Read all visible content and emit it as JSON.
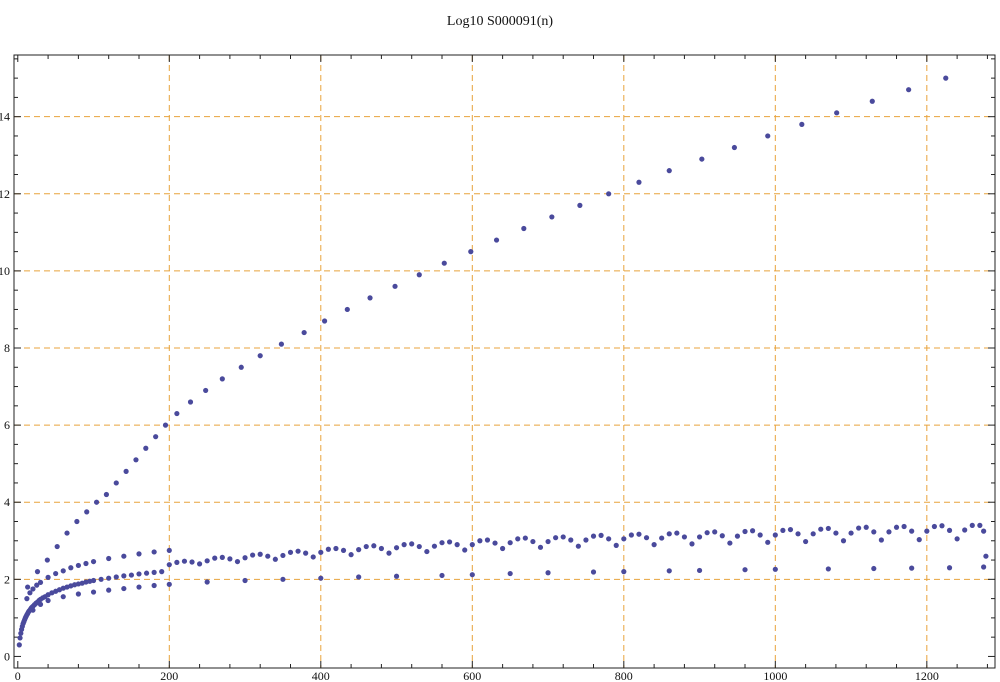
{
  "chart_data": {
    "type": "scatter",
    "title": "Log10 S000091(n)",
    "xlabel": "",
    "ylabel": "",
    "xlim": [
      -5,
      1290
    ],
    "ylim": [
      -0.3,
      15.6
    ],
    "xticks": [
      0,
      200,
      400,
      600,
      800,
      1000,
      1200
    ],
    "xtick_labels": [
      "0",
      "200",
      "400",
      "600",
      "800",
      "1000",
      "1200"
    ],
    "yticks": [
      0,
      2,
      4,
      6,
      8,
      10,
      12,
      14
    ],
    "ytick_labels": [
      "0",
      "2",
      "4",
      "6",
      "8",
      "10",
      "12",
      "14"
    ],
    "grid": true,
    "grid_style": "dashed",
    "colors": {
      "points": "#4a4a9c",
      "grid": "#e8a33c",
      "axes": "#222222"
    },
    "series": [
      {
        "points": [
          [
            2,
            0.3
          ],
          [
            3,
            0.48
          ],
          [
            4,
            0.6
          ],
          [
            5,
            0.7
          ],
          [
            6,
            0.78
          ],
          [
            7,
            0.85
          ],
          [
            8,
            0.9
          ],
          [
            9,
            0.95
          ],
          [
            10,
            1.0
          ],
          [
            11,
            1.04
          ],
          [
            12,
            1.08
          ],
          [
            13,
            1.11
          ],
          [
            14,
            1.15
          ],
          [
            15,
            1.18
          ],
          [
            16,
            1.2
          ],
          [
            17,
            1.23
          ],
          [
            18,
            1.26
          ],
          [
            19,
            1.28
          ],
          [
            20,
            1.3
          ],
          [
            22,
            1.34
          ],
          [
            24,
            1.38
          ],
          [
            26,
            1.41
          ],
          [
            28,
            1.45
          ],
          [
            30,
            1.48
          ],
          [
            33,
            1.52
          ],
          [
            36,
            1.55
          ],
          [
            40,
            1.6
          ],
          [
            45,
            1.65
          ],
          [
            50,
            1.69
          ],
          [
            55,
            1.73
          ],
          [
            60,
            1.77
          ],
          [
            65,
            1.8
          ],
          [
            70,
            1.83
          ],
          [
            75,
            1.86
          ],
          [
            80,
            1.88
          ],
          [
            85,
            1.9
          ],
          [
            90,
            1.93
          ],
          [
            95,
            1.95
          ],
          [
            100,
            1.97
          ],
          [
            110,
            2.0
          ],
          [
            120,
            2.03
          ],
          [
            130,
            2.06
          ],
          [
            140,
            2.09
          ],
          [
            150,
            2.11
          ],
          [
            160,
            2.14
          ],
          [
            170,
            2.16
          ],
          [
            180,
            2.18
          ],
          [
            190,
            2.2
          ],
          [
            12,
            1.5
          ],
          [
            16,
            1.65
          ],
          [
            20,
            1.75
          ],
          [
            25,
            1.85
          ],
          [
            30,
            1.92
          ],
          [
            40,
            2.05
          ],
          [
            50,
            2.15
          ],
          [
            60,
            2.22
          ],
          [
            70,
            2.3
          ],
          [
            80,
            2.36
          ],
          [
            90,
            2.41
          ],
          [
            100,
            2.46
          ],
          [
            120,
            2.54
          ],
          [
            140,
            2.6
          ],
          [
            160,
            2.66
          ],
          [
            180,
            2.71
          ],
          [
            200,
            2.75
          ],
          [
            20,
            1.2
          ],
          [
            30,
            1.35
          ],
          [
            40,
            1.45
          ],
          [
            60,
            1.55
          ],
          [
            80,
            1.62
          ],
          [
            100,
            1.67
          ],
          [
            120,
            1.72
          ],
          [
            140,
            1.76
          ],
          [
            160,
            1.8
          ],
          [
            180,
            1.84
          ],
          [
            200,
            1.87
          ],
          [
            250,
            1.93
          ],
          [
            300,
            1.97
          ],
          [
            350,
            2.0
          ],
          [
            400,
            2.03
          ],
          [
            450,
            2.06
          ],
          [
            500,
            2.08
          ],
          [
            560,
            2.1
          ],
          [
            600,
            2.12
          ],
          [
            650,
            2.15
          ],
          [
            700,
            2.17
          ],
          [
            760,
            2.19
          ],
          [
            800,
            2.2
          ],
          [
            860,
            2.22
          ],
          [
            900,
            2.23
          ],
          [
            960,
            2.25
          ],
          [
            1000,
            2.26
          ],
          [
            1070,
            2.27
          ],
          [
            1130,
            2.28
          ],
          [
            1180,
            2.29
          ],
          [
            1230,
            2.3
          ],
          [
            1275,
            2.32
          ],
          [
            200,
            2.38
          ],
          [
            210,
            2.44
          ],
          [
            220,
            2.47
          ],
          [
            230,
            2.45
          ],
          [
            240,
            2.4
          ],
          [
            250,
            2.48
          ],
          [
            260,
            2.55
          ],
          [
            270,
            2.57
          ],
          [
            280,
            2.53
          ],
          [
            290,
            2.46
          ],
          [
            300,
            2.56
          ],
          [
            310,
            2.63
          ],
          [
            320,
            2.65
          ],
          [
            330,
            2.6
          ],
          [
            340,
            2.52
          ],
          [
            350,
            2.62
          ],
          [
            360,
            2.7
          ],
          [
            370,
            2.73
          ],
          [
            380,
            2.68
          ],
          [
            390,
            2.58
          ],
          [
            400,
            2.7
          ],
          [
            410,
            2.78
          ],
          [
            420,
            2.8
          ],
          [
            430,
            2.75
          ],
          [
            440,
            2.64
          ],
          [
            450,
            2.77
          ],
          [
            460,
            2.85
          ],
          [
            470,
            2.87
          ],
          [
            480,
            2.8
          ],
          [
            490,
            2.68
          ],
          [
            500,
            2.82
          ],
          [
            510,
            2.9
          ],
          [
            520,
            2.92
          ],
          [
            530,
            2.85
          ],
          [
            540,
            2.72
          ],
          [
            550,
            2.86
          ],
          [
            560,
            2.95
          ],
          [
            570,
            2.97
          ],
          [
            580,
            2.9
          ],
          [
            590,
            2.76
          ],
          [
            600,
            2.9
          ],
          [
            610,
            3.0
          ],
          [
            620,
            3.02
          ],
          [
            630,
            2.94
          ],
          [
            640,
            2.8
          ],
          [
            650,
            2.95
          ],
          [
            660,
            3.05
          ],
          [
            670,
            3.07
          ],
          [
            680,
            2.98
          ],
          [
            690,
            2.83
          ],
          [
            700,
            2.98
          ],
          [
            710,
            3.08
          ],
          [
            720,
            3.1
          ],
          [
            730,
            3.02
          ],
          [
            740,
            2.86
          ],
          [
            750,
            3.02
          ],
          [
            760,
            3.12
          ],
          [
            770,
            3.14
          ],
          [
            780,
            3.05
          ],
          [
            790,
            2.88
          ],
          [
            800,
            3.05
          ],
          [
            810,
            3.15
          ],
          [
            820,
            3.17
          ],
          [
            830,
            3.08
          ],
          [
            840,
            2.9
          ],
          [
            850,
            3.07
          ],
          [
            860,
            3.18
          ],
          [
            870,
            3.2
          ],
          [
            880,
            3.1
          ],
          [
            890,
            2.92
          ],
          [
            900,
            3.1
          ],
          [
            910,
            3.21
          ],
          [
            920,
            3.23
          ],
          [
            930,
            3.13
          ],
          [
            940,
            2.94
          ],
          [
            950,
            3.12
          ],
          [
            960,
            3.24
          ],
          [
            970,
            3.26
          ],
          [
            980,
            3.15
          ],
          [
            990,
            2.96
          ],
          [
            1000,
            3.15
          ],
          [
            1010,
            3.27
          ],
          [
            1020,
            3.29
          ],
          [
            1030,
            3.18
          ],
          [
            1040,
            2.98
          ],
          [
            1050,
            3.18
          ],
          [
            1060,
            3.3
          ],
          [
            1070,
            3.32
          ],
          [
            1080,
            3.2
          ],
          [
            1090,
            3.0
          ],
          [
            1100,
            3.2
          ],
          [
            1110,
            3.33
          ],
          [
            1120,
            3.35
          ],
          [
            1130,
            3.23
          ],
          [
            1140,
            3.02
          ],
          [
            1150,
            3.23
          ],
          [
            1160,
            3.35
          ],
          [
            1170,
            3.37
          ],
          [
            1180,
            3.25
          ],
          [
            1190,
            3.03
          ],
          [
            1200,
            3.25
          ],
          [
            1210,
            3.37
          ],
          [
            1220,
            3.39
          ],
          [
            1230,
            3.27
          ],
          [
            1240,
            3.05
          ],
          [
            1250,
            3.28
          ],
          [
            1260,
            3.4
          ],
          [
            1270,
            3.4
          ],
          [
            1275,
            3.25
          ],
          [
            1278,
            2.6
          ],
          [
            13,
            1.8
          ],
          [
            26,
            2.2
          ],
          [
            39,
            2.5
          ],
          [
            52,
            2.85
          ],
          [
            65,
            3.2
          ],
          [
            78,
            3.5
          ],
          [
            91,
            3.75
          ],
          [
            104,
            4.0
          ],
          [
            117,
            4.2
          ],
          [
            130,
            4.5
          ],
          [
            143,
            4.8
          ],
          [
            156,
            5.1
          ],
          [
            169,
            5.4
          ],
          [
            182,
            5.7
          ],
          [
            195,
            6.0
          ],
          [
            210,
            6.3
          ],
          [
            228,
            6.6
          ],
          [
            248,
            6.9
          ],
          [
            270,
            7.2
          ],
          [
            295,
            7.5
          ],
          [
            320,
            7.8
          ],
          [
            348,
            8.1
          ],
          [
            378,
            8.4
          ],
          [
            405,
            8.7
          ],
          [
            435,
            9.0
          ],
          [
            465,
            9.3
          ],
          [
            498,
            9.6
          ],
          [
            530,
            9.9
          ],
          [
            563,
            10.2
          ],
          [
            598,
            10.5
          ],
          [
            632,
            10.8
          ],
          [
            668,
            11.1
          ],
          [
            705,
            11.4
          ],
          [
            742,
            11.7
          ],
          [
            780,
            12.0
          ],
          [
            820,
            12.3
          ],
          [
            860,
            12.6
          ],
          [
            903,
            12.9
          ],
          [
            946,
            13.2
          ],
          [
            990,
            13.5
          ],
          [
            1035,
            13.8
          ],
          [
            1081,
            14.1
          ],
          [
            1128,
            14.4
          ],
          [
            1176,
            14.7
          ],
          [
            1225,
            15.0
          ]
        ]
      }
    ]
  }
}
